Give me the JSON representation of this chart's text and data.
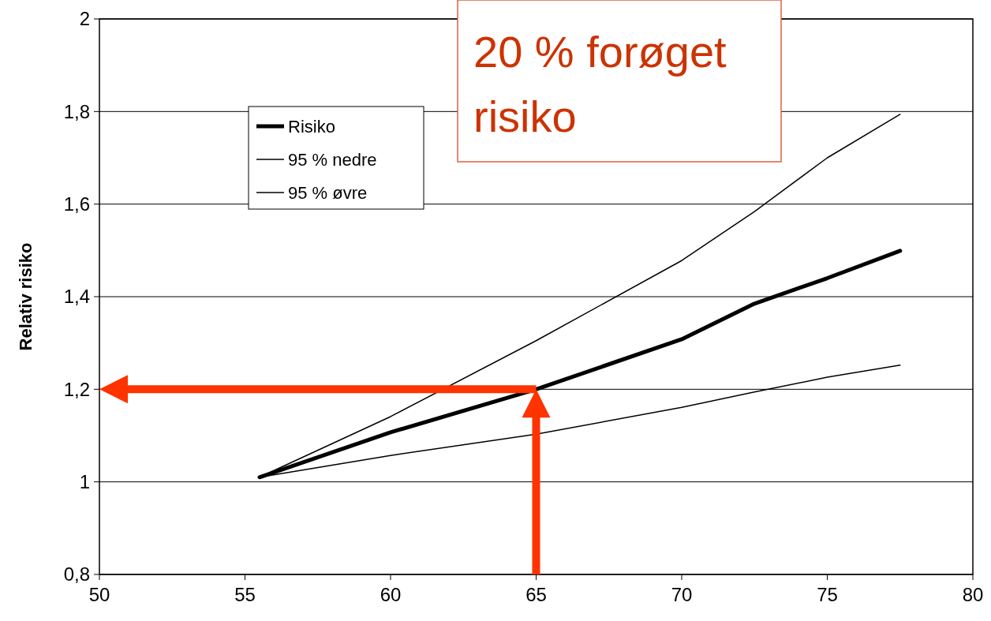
{
  "chart_data": {
    "type": "line",
    "ylabel": "Relativ risiko",
    "x": [
      55.5,
      60,
      65,
      70,
      72.5,
      75,
      77.5
    ],
    "series": [
      {
        "name": "Risiko",
        "color": "#000000",
        "values": [
          1.01,
          1.107,
          1.2,
          1.308,
          1.385,
          1.44,
          1.499
        ]
      },
      {
        "name": "95 % nedre",
        "color": "#000000",
        "values": [
          1.01,
          1.057,
          1.103,
          1.161,
          1.194,
          1.226,
          1.252
        ]
      },
      {
        "name": "95 % øvre",
        "color": "#000000",
        "values": [
          1.01,
          1.141,
          1.305,
          1.478,
          1.584,
          1.7,
          1.794
        ]
      }
    ],
    "xlim": [
      50,
      80
    ],
    "xticks": [
      50,
      55,
      60,
      65,
      70,
      75,
      80
    ],
    "ylim": [
      0.8,
      2
    ],
    "yticks": [
      {
        "value": 0.8,
        "label": "0,8"
      },
      1,
      {
        "value": 1.2,
        "label": "1,2"
      },
      {
        "value": 1.4,
        "label": "1,4"
      },
      {
        "value": 1.6,
        "label": "1,6"
      },
      {
        "value": 1.8,
        "label": "1,8"
      },
      2
    ],
    "grid": "y",
    "legend": "top left",
    "marker": "none",
    "line_style": "solid",
    "ref_lines": [
      {
        "axis": "x",
        "value": 65,
        "color": "#ff3300"
      },
      {
        "axis": "y",
        "value": 1.2,
        "color": "#ff3300"
      }
    ],
    "annotations": [
      "20 % forøget risiko"
    ]
  }
}
